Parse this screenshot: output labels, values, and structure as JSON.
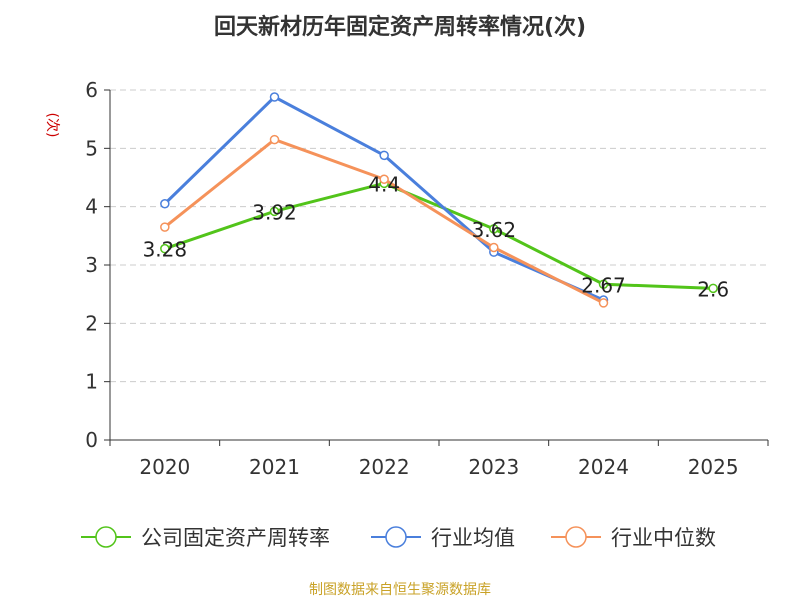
{
  "chart_data": {
    "type": "line",
    "title": "回天新材历年固定资产周转率情况(次)",
    "ylabel": "(次)",
    "xlabel": "",
    "categories": [
      "2020",
      "2021",
      "2022",
      "2023",
      "2024",
      "2025"
    ],
    "ylim": [
      0,
      6
    ],
    "yticks": [
      "0",
      "1",
      "2",
      "3",
      "4",
      "5",
      "6"
    ],
    "grid": true,
    "legend_position": "bottom",
    "series": [
      {
        "name": "公司固定资产周转率",
        "color": "#52c41a",
        "values": [
          3.28,
          3.92,
          4.4,
          3.62,
          2.67,
          2.6
        ],
        "labels": [
          "3.28",
          "3.92",
          "4.4",
          "3.62",
          "2.67",
          "2.6"
        ]
      },
      {
        "name": "行业均值",
        "color": "#4a7fdc",
        "values": [
          4.05,
          5.88,
          4.88,
          3.22,
          2.4,
          null
        ]
      },
      {
        "name": "行业中位数",
        "color": "#f5925a",
        "values": [
          3.65,
          5.15,
          4.47,
          3.3,
          2.35,
          null
        ]
      }
    ]
  },
  "source": "制图数据来自恒生聚源数据库",
  "colors": {
    "title": "#333333",
    "axis": "#333333",
    "grid": "#cccccc",
    "ylabel": "#cc0000",
    "source": "#c9a227"
  }
}
